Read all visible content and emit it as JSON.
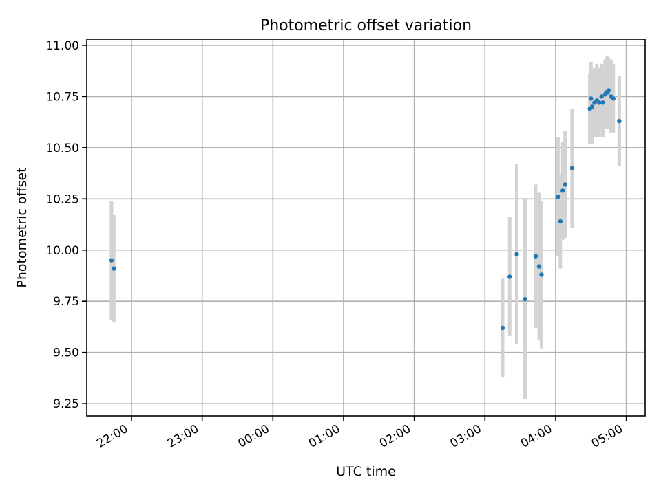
{
  "chart_data": {
    "type": "scatter",
    "title": "Photometric offset variation",
    "xlabel": "UTC time",
    "ylabel": "Photometric offset",
    "x_unit": "UTC time (HH:MM, spanning midnight)",
    "x_ticks": [
      "22:00",
      "23:00",
      "00:00",
      "01:00",
      "02:00",
      "03:00",
      "04:00",
      "05:00"
    ],
    "y_ticks": [
      "9.25",
      "9.50",
      "9.75",
      "10.00",
      "10.25",
      "10.50",
      "10.75",
      "11.00"
    ],
    "xlim": [
      "21:22",
      "05:16"
    ],
    "ylim": [
      9.19,
      11.03
    ],
    "grid": true,
    "colors": {
      "points": "#1f77b4",
      "errorbars": "#d3d3d3",
      "grid": "#b0b0b0"
    },
    "points": [
      {
        "t": "21:43",
        "y": 9.95,
        "err": 0.29
      },
      {
        "t": "21:45",
        "y": 9.91,
        "err": 0.26
      },
      {
        "t": "03:15",
        "y": 9.62,
        "err": 0.24
      },
      {
        "t": "03:21",
        "y": 9.87,
        "err": 0.29
      },
      {
        "t": "03:27",
        "y": 9.98,
        "err": 0.44
      },
      {
        "t": "03:34",
        "y": 9.76,
        "err": 0.49
      },
      {
        "t": "03:43",
        "y": 9.97,
        "err": 0.35
      },
      {
        "t": "03:46",
        "y": 9.92,
        "err": 0.36
      },
      {
        "t": "03:48",
        "y": 9.88,
        "err": 0.36
      },
      {
        "t": "04:02",
        "y": 10.26,
        "err": 0.29
      },
      {
        "t": "04:04",
        "y": 10.14,
        "err": 0.23
      },
      {
        "t": "04:06",
        "y": 10.29,
        "err": 0.24
      },
      {
        "t": "04:08",
        "y": 10.32,
        "err": 0.26
      },
      {
        "t": "04:14",
        "y": 10.4,
        "err": 0.29
      },
      {
        "t": "04:29",
        "y": 10.69,
        "err": 0.17
      },
      {
        "t": "04:30",
        "y": 10.74,
        "err": 0.18
      },
      {
        "t": "04:31",
        "y": 10.7,
        "err": 0.18
      },
      {
        "t": "04:33",
        "y": 10.72,
        "err": 0.17
      },
      {
        "t": "04:35",
        "y": 10.73,
        "err": 0.18
      },
      {
        "t": "04:37",
        "y": 10.72,
        "err": 0.17
      },
      {
        "t": "04:39",
        "y": 10.75,
        "err": 0.16
      },
      {
        "t": "04:40",
        "y": 10.72,
        "err": 0.17
      },
      {
        "t": "04:42",
        "y": 10.76,
        "err": 0.17
      },
      {
        "t": "04:43",
        "y": 10.77,
        "err": 0.17
      },
      {
        "t": "04:44",
        "y": 10.77,
        "err": 0.18
      },
      {
        "t": "04:45",
        "y": 10.78,
        "err": 0.16
      },
      {
        "t": "04:47",
        "y": 10.75,
        "err": 0.18
      },
      {
        "t": "04:49",
        "y": 10.74,
        "err": 0.17
      },
      {
        "t": "04:54",
        "y": 10.63,
        "err": 0.22
      }
    ]
  }
}
